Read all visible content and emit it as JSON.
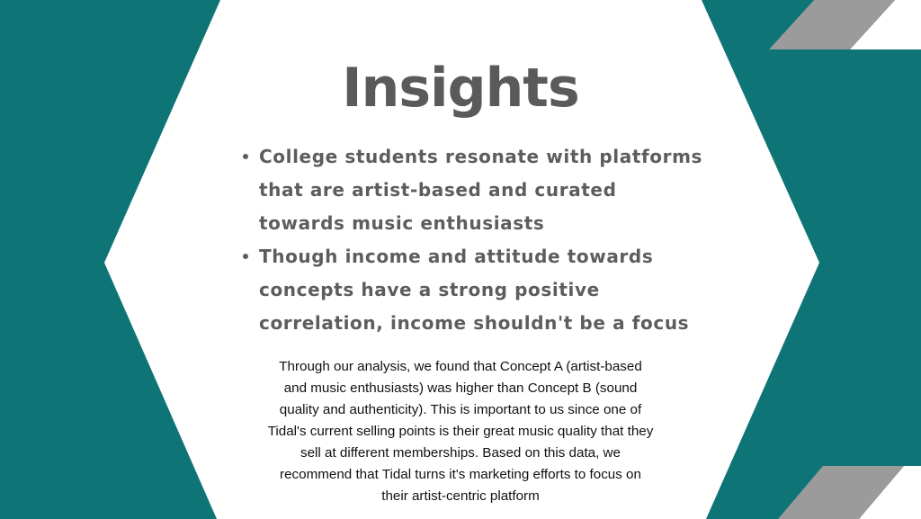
{
  "slide": {
    "title": "Insights",
    "bullets": [
      "College students resonate with platforms that are artist-based and curated towards music enthusiasts",
      "Though income and attitude towards concepts have a strong positive correlation, income shouldn't be a focus"
    ],
    "paragraph": "Through our analysis, we found that Concept A (artist-based and music enthusiasts) was higher than Concept B (sound quality and authenticity). This is important to us since one of Tidal's current selling points is their great music quality that they sell at different memberships. Based on this data, we recommend that Tidal turns it's marketing efforts to focus on their artist-centric platform"
  },
  "colors": {
    "teal": "#0e7476",
    "gray_stripe": "#9b9b9b",
    "white": "#ffffff",
    "title_text": "#5a5a5a"
  }
}
